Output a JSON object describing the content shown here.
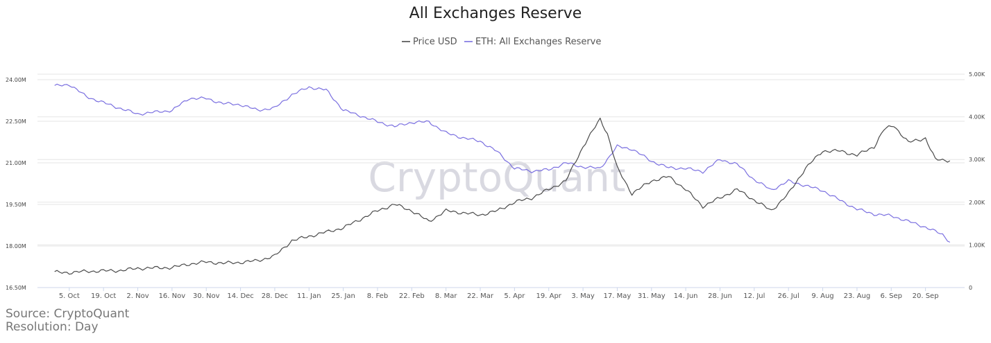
{
  "watermark": "CryptoQuant",
  "footer": {
    "source": "Source: CryptoQuant",
    "resolution": "Resolution: Day"
  },
  "colors": {
    "price": "#4a4a4a",
    "reserve": "#7a6fe0"
  },
  "chart_data": {
    "type": "line",
    "title": "All Exchanges Reserve",
    "legend_position": "top-center",
    "grid": true,
    "x_ticks": [
      "5. Oct",
      "19. Oct",
      "2. Nov",
      "16. Nov",
      "30. Nov",
      "14. Dec",
      "28. Dec",
      "11. Jan",
      "25. Jan",
      "8. Feb",
      "22. Feb",
      "8. Mar",
      "22. Mar",
      "5. Apr",
      "19. Apr",
      "3. May",
      "17. May",
      "31. May",
      "14. Jun",
      "28. Jun",
      "12. Jul",
      "26. Jul",
      "9. Aug",
      "23. Aug",
      "6. Sep",
      "20. Sep"
    ],
    "left_axis": {
      "ylim": [
        16500000,
        24000000
      ],
      "ticks": [
        "16.50M",
        "18.00M",
        "19.50M",
        "21.00M",
        "22.50M",
        "24.00M"
      ]
    },
    "right_axis": {
      "ylim": [
        0,
        5000
      ],
      "ticks": [
        "0",
        "1.00K",
        "2.00K",
        "3.00K",
        "4.00K",
        "5.00K"
      ]
    },
    "series": [
      {
        "name": "Price USD",
        "axis": "right",
        "x": [
          "2020-09-29",
          "2020-10-05",
          "2020-10-12",
          "2020-10-19",
          "2020-10-26",
          "2020-11-02",
          "2020-11-09",
          "2020-11-16",
          "2020-11-23",
          "2020-11-30",
          "2020-12-07",
          "2020-12-14",
          "2020-12-21",
          "2020-12-28",
          "2021-01-04",
          "2021-01-11",
          "2021-01-18",
          "2021-01-25",
          "2021-02-01",
          "2021-02-08",
          "2021-02-15",
          "2021-02-22",
          "2021-03-01",
          "2021-03-08",
          "2021-03-15",
          "2021-03-22",
          "2021-03-29",
          "2021-04-05",
          "2021-04-12",
          "2021-04-19",
          "2021-04-26",
          "2021-05-03",
          "2021-05-10",
          "2021-05-13",
          "2021-05-17",
          "2021-05-23",
          "2021-05-31",
          "2021-06-07",
          "2021-06-14",
          "2021-06-21",
          "2021-06-28",
          "2021-07-05",
          "2021-07-12",
          "2021-07-19",
          "2021-07-26",
          "2021-08-02",
          "2021-08-09",
          "2021-08-16",
          "2021-08-23",
          "2021-08-30",
          "2021-09-03",
          "2021-09-07",
          "2021-09-13",
          "2021-09-20",
          "2021-09-24",
          "2021-09-30"
        ],
        "values": [
          360,
          350,
          380,
          390,
          400,
          450,
          460,
          470,
          550,
          600,
          570,
          590,
          630,
          740,
          1100,
          1200,
          1300,
          1400,
          1600,
          1800,
          1950,
          1800,
          1550,
          1800,
          1750,
          1700,
          1800,
          2000,
          2100,
          2300,
          2500,
          3300,
          3950,
          3600,
          2800,
          2200,
          2500,
          2600,
          2300,
          1900,
          2100,
          2300,
          2050,
          1800,
          2200,
          2800,
          3200,
          3200,
          3100,
          3300,
          3700,
          3800,
          3400,
          3500,
          3000,
          2980
        ]
      },
      {
        "name": "ETH: All Exchanges Reserve",
        "axis": "left",
        "x": [
          "2020-09-29",
          "2020-10-05",
          "2020-10-12",
          "2020-10-19",
          "2020-10-26",
          "2020-11-02",
          "2020-11-09",
          "2020-11-16",
          "2020-11-23",
          "2020-11-30",
          "2020-12-07",
          "2020-12-14",
          "2020-12-21",
          "2020-12-28",
          "2021-01-04",
          "2021-01-11",
          "2021-01-18",
          "2021-01-25",
          "2021-02-01",
          "2021-02-08",
          "2021-02-15",
          "2021-02-22",
          "2021-03-01",
          "2021-03-08",
          "2021-03-15",
          "2021-03-22",
          "2021-03-29",
          "2021-04-05",
          "2021-04-12",
          "2021-04-19",
          "2021-04-26",
          "2021-05-03",
          "2021-05-10",
          "2021-05-17",
          "2021-05-23",
          "2021-05-31",
          "2021-06-07",
          "2021-06-14",
          "2021-06-21",
          "2021-06-28",
          "2021-07-05",
          "2021-07-12",
          "2021-07-19",
          "2021-07-26",
          "2021-08-02",
          "2021-08-09",
          "2021-08-16",
          "2021-08-23",
          "2021-08-30",
          "2021-09-06",
          "2021-09-13",
          "2021-09-20",
          "2021-09-27",
          "2021-09-30"
        ],
        "values": [
          23770000,
          23830000,
          23390000,
          23170000,
          22960000,
          22760000,
          22830000,
          22890000,
          23330000,
          23320000,
          23140000,
          23100000,
          22900000,
          22980000,
          23460000,
          23730000,
          23630000,
          22900000,
          22700000,
          22480000,
          22310000,
          22460000,
          22480000,
          22080000,
          21900000,
          21780000,
          21400000,
          20800000,
          20700000,
          20750000,
          21000000,
          20850000,
          20800000,
          21590000,
          21500000,
          21060000,
          20820000,
          20800000,
          20680000,
          21120000,
          20950000,
          20390000,
          20020000,
          20340000,
          20180000,
          20000000,
          19650000,
          19330000,
          19150000,
          19090000,
          18890000,
          18680000,
          18410000,
          18150000
        ]
      }
    ]
  }
}
